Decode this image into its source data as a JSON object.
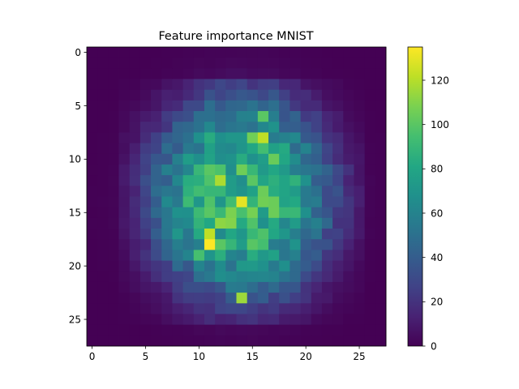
{
  "chart_data": {
    "type": "heatmap",
    "title": "Feature importance MNIST",
    "xlabel": "",
    "ylabel": "",
    "rows": 28,
    "cols": 28,
    "xlim": [
      -0.5,
      27.5
    ],
    "ylim": [
      27.5,
      -0.5
    ],
    "x_ticks": [
      0,
      5,
      10,
      15,
      20,
      25
    ],
    "y_ticks": [
      0,
      5,
      10,
      15,
      20,
      25
    ],
    "colorbar": {
      "min": 0,
      "max": 135,
      "ticks": [
        0,
        20,
        40,
        60,
        80,
        100,
        120
      ],
      "colormap": "viridis"
    },
    "peaks": [
      {
        "x": 11,
        "y": 18,
        "value": 135
      },
      {
        "x": 14,
        "y": 14,
        "value": 130
      },
      {
        "x": 16,
        "y": 8,
        "value": 122
      },
      {
        "x": 11,
        "y": 17,
        "value": 122
      },
      {
        "x": 12,
        "y": 12,
        "value": 118
      },
      {
        "x": 14,
        "y": 23,
        "value": 115
      },
      {
        "x": 12,
        "y": 16,
        "value": 112
      },
      {
        "x": 13,
        "y": 16,
        "value": 110
      },
      {
        "x": 15,
        "y": 8,
        "value": 106
      },
      {
        "x": 11,
        "y": 11,
        "value": 100
      },
      {
        "x": 17,
        "y": 10,
        "value": 104
      },
      {
        "x": 16,
        "y": 6,
        "value": 100
      },
      {
        "x": 15,
        "y": 12,
        "value": 100
      },
      {
        "x": 12,
        "y": 18,
        "value": 100
      },
      {
        "x": 10,
        "y": 19,
        "value": 95
      }
    ]
  }
}
